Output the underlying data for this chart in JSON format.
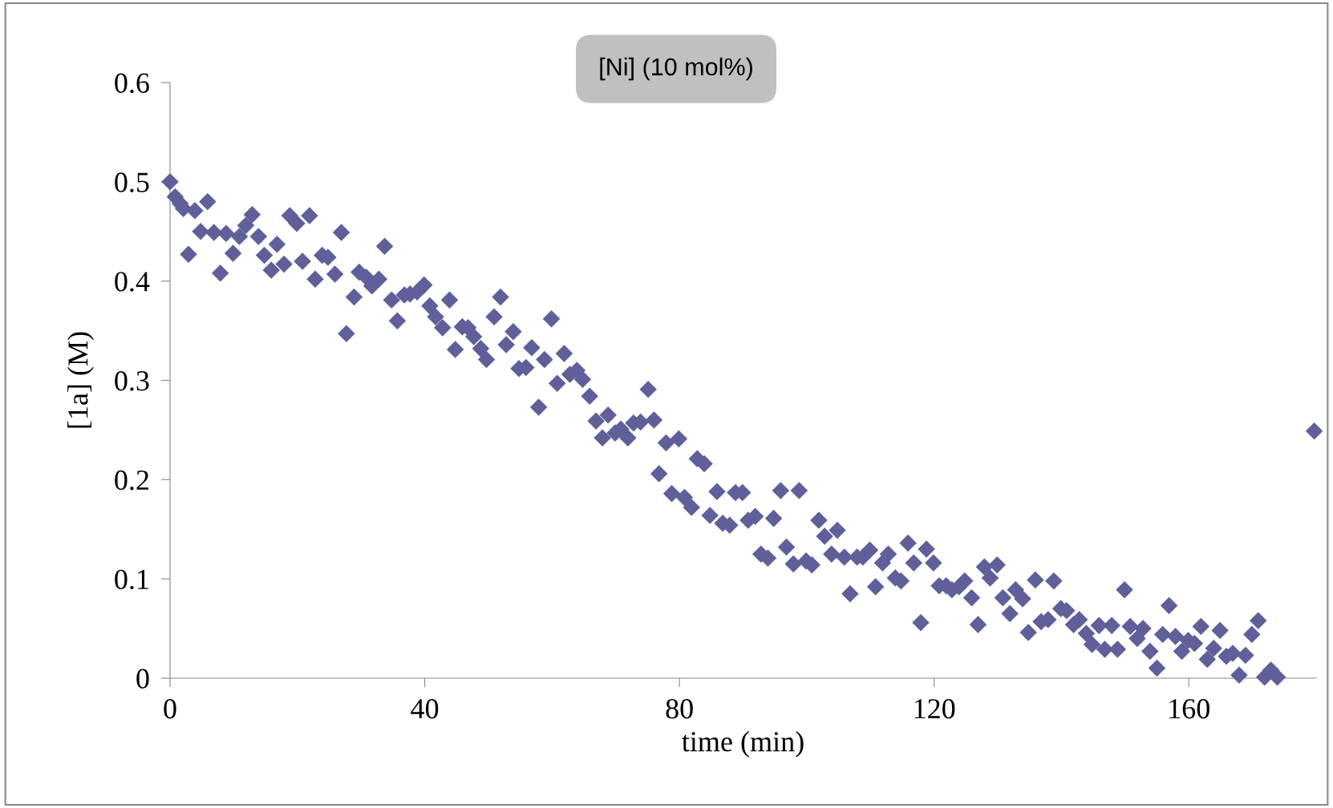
{
  "chart_data": {
    "type": "scatter",
    "title": "[Ni] (10 mol%)",
    "xlabel": "time (min)",
    "ylabel": "[1a] (M)",
    "xlim": [
      0,
      180
    ],
    "xticks": [
      0,
      40,
      80,
      120,
      160
    ],
    "ylim": [
      0,
      0.6
    ],
    "yticks": [
      0,
      0.1,
      0.2,
      0.3,
      0.4,
      0.5,
      0.6
    ],
    "grid": false,
    "legend": false,
    "marker": "diamond",
    "series": [
      {
        "color": "#5f5f9a",
        "x": [
          0,
          0.8,
          1.6,
          2.1,
          2.9,
          3.9,
          4.8,
          5.9,
          6.9,
          7.9,
          8.8,
          9.9,
          10.9,
          11.9,
          12.9,
          13.9,
          14.8,
          15.9,
          16.8,
          17.9,
          18.8,
          19.9,
          20.8,
          21.9,
          22.8,
          23.9,
          24.8,
          25.9,
          26.9,
          27.7,
          28.9,
          29.7,
          30.8,
          31.7,
          32.8,
          33.7,
          34.8,
          35.7,
          36.8,
          37.7,
          38.8,
          39.9,
          40.8,
          41.7,
          42.8,
          43.9,
          44.8,
          45.9,
          46.8,
          47.7,
          48.8,
          49.7,
          50.9,
          51.9,
          52.8,
          53.9,
          54.8,
          55.9,
          56.8,
          57.9,
          58.8,
          59.9,
          60.8,
          61.9,
          62.8,
          63.9,
          64.8,
          65.9,
          66.9,
          67.9,
          68.8,
          69.9,
          70.8,
          71.9,
          72.8,
          73.9,
          75.1,
          76.0,
          76.8,
          77.9,
          78.8,
          79.9,
          80.8,
          81.9,
          82.8,
          83.9,
          84.8,
          85.9,
          86.8,
          87.9,
          88.8,
          89.9,
          90.8,
          91.9,
          92.8,
          93.9,
          94.8,
          95.9,
          96.8,
          97.9,
          98.8,
          99.9,
          100.8,
          101.9,
          102.8,
          103.9,
          104.8,
          105.9,
          106.8,
          107.9,
          108.8,
          109.9,
          110.8,
          111.9,
          112.8,
          113.9,
          114.8,
          115.9,
          116.8,
          117.9,
          118.8,
          119.9,
          120.8,
          121.9,
          122.8,
          123.9,
          124.8,
          125.9,
          126.9,
          127.9,
          128.8,
          129.9,
          130.8,
          131.9,
          132.8,
          133.9,
          134.8,
          135.9,
          136.8,
          137.9,
          138.8,
          139.9,
          140.8,
          141.9,
          142.8,
          143.9,
          144.8,
          145.9,
          146.8,
          147.9,
          148.8,
          149.9,
          150.8,
          151.9,
          152.8,
          153.9,
          155.0,
          155.9,
          156.9,
          157.9,
          158.9,
          159.9,
          160.9,
          161.9,
          162.9,
          163.9,
          164.9,
          165.9,
          166.9,
          167.9,
          168.9,
          169.9,
          170.9,
          171.9,
          172.9,
          173.9,
          179.7
        ],
        "values": [
          0.5,
          0.485,
          0.478,
          0.473,
          0.427,
          0.471,
          0.45,
          0.48,
          0.449,
          0.408,
          0.448,
          0.428,
          0.445,
          0.456,
          0.467,
          0.445,
          0.426,
          0.411,
          0.437,
          0.417,
          0.466,
          0.458,
          0.42,
          0.466,
          0.402,
          0.426,
          0.424,
          0.407,
          0.449,
          0.347,
          0.384,
          0.409,
          0.404,
          0.395,
          0.402,
          0.435,
          0.381,
          0.36,
          0.386,
          0.387,
          0.389,
          0.396,
          0.375,
          0.364,
          0.353,
          0.381,
          0.331,
          0.354,
          0.353,
          0.344,
          0.332,
          0.321,
          0.364,
          0.384,
          0.336,
          0.349,
          0.312,
          0.313,
          0.333,
          0.273,
          0.321,
          0.362,
          0.297,
          0.327,
          0.306,
          0.31,
          0.301,
          0.284,
          0.259,
          0.242,
          0.265,
          0.247,
          0.251,
          0.242,
          0.257,
          0.258,
          0.291,
          0.26,
          0.206,
          0.237,
          0.186,
          0.241,
          0.182,
          0.172,
          0.221,
          0.216,
          0.164,
          0.188,
          0.156,
          0.154,
          0.187,
          0.187,
          0.159,
          0.163,
          0.125,
          0.121,
          0.161,
          0.189,
          0.132,
          0.115,
          0.189,
          0.118,
          0.114,
          0.159,
          0.143,
          0.125,
          0.149,
          0.122,
          0.085,
          0.122,
          0.122,
          0.129,
          0.092,
          0.116,
          0.125,
          0.101,
          0.098,
          0.136,
          0.116,
          0.056,
          0.13,
          0.116,
          0.093,
          0.093,
          0.089,
          0.092,
          0.098,
          0.081,
          0.054,
          0.112,
          0.101,
          0.114,
          0.081,
          0.065,
          0.089,
          0.08,
          0.046,
          0.099,
          0.057,
          0.059,
          0.098,
          0.07,
          0.068,
          0.054,
          0.059,
          0.045,
          0.034,
          0.053,
          0.029,
          0.053,
          0.029,
          0.089,
          0.052,
          0.04,
          0.05,
          0.027,
          0.01,
          0.044,
          0.073,
          0.042,
          0.027,
          0.038,
          0.035,
          0.052,
          0.019,
          0.03,
          0.048,
          0.022,
          0.025,
          0.003,
          0.023,
          0.044,
          0.058,
          0.001,
          0.008,
          0.001,
          0.249
        ]
      }
    ]
  }
}
